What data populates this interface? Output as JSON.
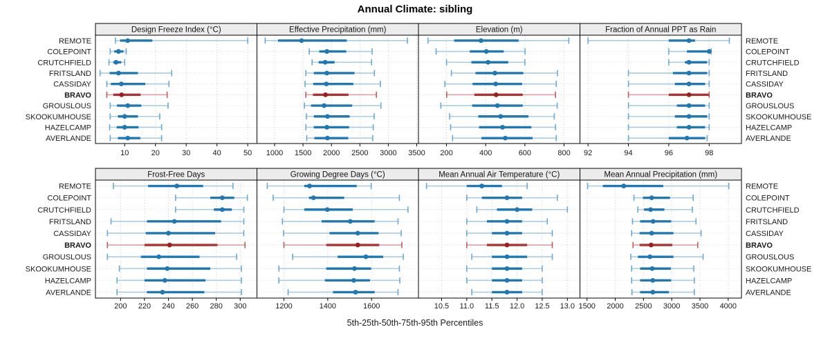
{
  "title": "Annual Climate: sibling",
  "caption": "5th-25th-50th-75th-95th Percentiles",
  "colors": {
    "blue_main": "#1f77b4",
    "blue_light": "#a8cce4",
    "blue_cap": "#69a8d3",
    "blue_guide": "#d3dde5",
    "red_main": "#b03030",
    "red_light": "#dca0a0",
    "red_cap": "#c05a5a",
    "red_dot": "#9c1f1f",
    "red_guide": "#e8cbcb",
    "header_bg": "#ececec",
    "frame": "#000000",
    "grid": "#cccccc",
    "text": "#1a1a1a"
  },
  "chart_data": {
    "type": "trellis_percentile_range",
    "percentiles": [
      5,
      25,
      50,
      75,
      95
    ],
    "stations": [
      "REMOTE",
      "COLEPOINT",
      "CRUTCHFIELD",
      "FRITSLAND",
      "CASSIDAY",
      "BRAVO",
      "GROUSLOUS",
      "SKOOKUMHOUSE",
      "HAZELCAMP",
      "AVERLANDE"
    ],
    "highlight_station": "BRAVO",
    "layout": {
      "rows": 2,
      "cols": 4,
      "legend": "none",
      "grid": "dotted"
    },
    "panels": [
      {
        "title": "Design Freeze Index (°C)",
        "row": 0,
        "col": 0,
        "xlim": [
          0.5,
          53
        ],
        "ticks": [
          10,
          20,
          30,
          40,
          50
        ],
        "tick_labels": [
          "10",
          "20",
          "30",
          "40",
          "50"
        ],
        "series": [
          {
            "station": "REMOTE",
            "p": [
              7,
              8.5,
              11,
              19,
              50
            ]
          },
          {
            "station": "COLEPOINT",
            "p": [
              5.3,
              6.6,
              8,
              9.6,
              10.5
            ]
          },
          {
            "station": "CRUTCHFIELD",
            "p": [
              4.9,
              6.3,
              7.2,
              8.9,
              10
            ]
          },
          {
            "station": "FRITSLAND",
            "p": [
              2,
              5.1,
              8,
              14.3,
              25.3
            ]
          },
          {
            "station": "CASSIDAY",
            "p": [
              4.2,
              5.5,
              8.9,
              16.7,
              24.4
            ]
          },
          {
            "station": "BRAVO",
            "p": [
              4.2,
              6.3,
              9,
              15.2,
              23.8
            ]
          },
          {
            "station": "GROUSLOUS",
            "p": [
              5.3,
              7.5,
              11,
              15.4,
              24.1
            ]
          },
          {
            "station": "SKOOKUMHOUSE",
            "p": [
              5.3,
              7.8,
              10,
              14.3,
              21.4
            ]
          },
          {
            "station": "HAZELCAMP",
            "p": [
              5.1,
              7.4,
              10,
              14.5,
              22
            ]
          },
          {
            "station": "AVERLANDE",
            "p": [
              5.3,
              7.8,
              11,
              15.1,
              22
            ]
          }
        ]
      },
      {
        "title": "Effective Precipitation (mm)",
        "row": 0,
        "col": 1,
        "xlim": [
          690,
          3530
        ],
        "ticks": [
          1000,
          1500,
          2000,
          2500,
          3000,
          3500
        ],
        "tick_labels": [
          "1000",
          "1500",
          "2000",
          "2500",
          "3000",
          "3500"
        ],
        "series": [
          {
            "station": "REMOTE",
            "p": [
              835,
              1060,
              1475,
              2270,
              3335
            ]
          },
          {
            "station": "COLEPOINT",
            "p": [
              1610,
              1785,
              1920,
              2260,
              2715
            ]
          },
          {
            "station": "CRUTCHFIELD",
            "p": [
              1660,
              1775,
              1890,
              2055,
              2705
            ]
          },
          {
            "station": "FRITSLAND",
            "p": [
              1550,
              1690,
              1920,
              2405,
              2755
            ]
          },
          {
            "station": "CASSIDAY",
            "p": [
              1535,
              1680,
              1910,
              2385,
              2860
            ]
          },
          {
            "station": "BRAVO",
            "p": [
              1550,
              1675,
              1895,
              2300,
              2790
            ]
          },
          {
            "station": "GROUSLOUS",
            "p": [
              1525,
              1640,
              1870,
              2365,
              2870
            ]
          },
          {
            "station": "SKOOKUMHOUSE",
            "p": [
              1560,
              1690,
              1930,
              2320,
              2750
            ]
          },
          {
            "station": "HAZELCAMP",
            "p": [
              1550,
              1690,
              1920,
              2310,
              2735
            ]
          },
          {
            "station": "AVERLANDE",
            "p": [
              1565,
              1700,
              1930,
              2295,
              2725
            ]
          }
        ]
      },
      {
        "title": "Elevation (m)",
        "row": 0,
        "col": 2,
        "xlim": [
          57,
          881
        ],
        "ticks": [
          200,
          400,
          600,
          800
        ],
        "tick_labels": [
          "200",
          "400",
          "600",
          "800"
        ],
        "series": [
          {
            "station": "REMOTE",
            "p": [
              106,
              239,
              376,
              568,
              824
            ]
          },
          {
            "station": "COLEPOINT",
            "p": [
              147,
              319,
              403,
              492,
              601
            ]
          },
          {
            "station": "CRUTCHFIELD",
            "p": [
              200,
              327,
              412,
              515,
              600
            ]
          },
          {
            "station": "FRITSLAND",
            "p": [
              225,
              348,
              447,
              592,
              766
            ]
          },
          {
            "station": "CASSIDAY",
            "p": [
              192,
              333,
              451,
              586,
              760
            ]
          },
          {
            "station": "BRAVO",
            "p": [
              201,
              342,
              453,
              589,
              756
            ]
          },
          {
            "station": "GROUSLOUS",
            "p": [
              171,
              331,
              460,
              589,
              765
            ]
          },
          {
            "station": "SKOOKUMHOUSE",
            "p": [
              216,
              362,
              476,
              618,
              750
            ]
          },
          {
            "station": "HAZELCAMP",
            "p": [
              221,
              366,
              486,
              633,
              756
            ]
          },
          {
            "station": "AVERLANDE",
            "p": [
              231,
              378,
              500,
              639,
              760
            ]
          }
        ]
      },
      {
        "title": "Fraction of Annual PPT as Rain",
        "row": 0,
        "col": 3,
        "xlim": [
          91.6,
          99.6
        ],
        "ticks": [
          92,
          94,
          96,
          98
        ],
        "tick_labels": [
          "92",
          "94",
          "96",
          "98"
        ],
        "series": [
          {
            "station": "REMOTE",
            "p": [
              92,
              96,
              97,
              97.3,
              99
            ]
          },
          {
            "station": "COLEPOINT",
            "p": [
              96,
              96.9,
              98,
              98,
              98.1
            ]
          },
          {
            "station": "CRUTCHFIELD",
            "p": [
              96,
              96.8,
              97,
              97.9,
              98
            ]
          },
          {
            "station": "FRITSLAND",
            "p": [
              94,
              96.2,
              97,
              97.9,
              98
            ]
          },
          {
            "station": "CASSIDAY",
            "p": [
              94,
              96.3,
              97,
              97.8,
              98
            ]
          },
          {
            "station": "BRAVO",
            "p": [
              94,
              96,
              97,
              98,
              98
            ]
          },
          {
            "station": "GROUSLOUS",
            "p": [
              94,
              96.4,
              97,
              97.8,
              98
            ]
          },
          {
            "station": "SKOOKUMHOUSE",
            "p": [
              94,
              96.3,
              97,
              97.9,
              98
            ]
          },
          {
            "station": "HAZELCAMP",
            "p": [
              94,
              96.4,
              97,
              97.8,
              98
            ]
          },
          {
            "station": "AVERLANDE",
            "p": [
              94,
              96,
              96.9,
              97.8,
              97.9
            ]
          }
        ]
      },
      {
        "title": "Frost-Free Days",
        "row": 1,
        "col": 0,
        "xlim": [
          179,
          314
        ],
        "ticks": [
          200,
          220,
          240,
          260,
          280,
          300
        ],
        "tick_labels": [
          "200",
          "220",
          "240",
          "260",
          "280",
          "300"
        ],
        "series": [
          {
            "station": "REMOTE",
            "p": [
              194,
              223,
              247,
              269,
              294
            ]
          },
          {
            "station": "COLEPOINT",
            "p": [
              246,
              275,
              285,
              295,
              306
            ]
          },
          {
            "station": "CRUTCHFIELD",
            "p": [
              246,
              278,
              285,
              293,
              303
            ]
          },
          {
            "station": "FRITSLAND",
            "p": [
              192,
              222,
              245,
              284,
              303
            ]
          },
          {
            "station": "CASSIDAY",
            "p": [
              189,
              221,
              240,
              279,
              303
            ]
          },
          {
            "station": "BRAVO",
            "p": [
              189,
              220,
              241,
              281,
              304
            ]
          },
          {
            "station": "GROUSLOUS",
            "p": [
              189,
              217,
              232,
              266,
              297
            ]
          },
          {
            "station": "SKOOKUMHOUSE",
            "p": [
              199,
              222,
              239,
              275,
              301
            ]
          },
          {
            "station": "HAZELCAMP",
            "p": [
              197,
              220,
              237,
              271,
              301
            ]
          },
          {
            "station": "AVERLANDE",
            "p": [
              197,
              222,
              235,
              270,
              301
            ]
          }
        ]
      },
      {
        "title": "Growing Degree Days (°C)",
        "row": 1,
        "col": 1,
        "xlim": [
          1077,
          1814
        ],
        "ticks": [
          1200,
          1400,
          1600
        ],
        "tick_labels": [
          "1200",
          "1400",
          "1600"
        ],
        "series": [
          {
            "station": "REMOTE",
            "p": [
              1124,
              1293,
              1317,
              1532,
              1598
            ]
          },
          {
            "station": "COLEPOINT",
            "p": [
              1151,
              1314,
              1335,
              1475,
              1727
            ]
          },
          {
            "station": "CRUTCHFIELD",
            "p": [
              1200,
              1293,
              1398,
              1514,
              1766
            ]
          },
          {
            "station": "FRITSLAND",
            "p": [
              1193,
              1372,
              1503,
              1614,
              1721
            ]
          },
          {
            "station": "CASSIDAY",
            "p": [
              1198,
              1408,
              1537,
              1632,
              1735
            ]
          },
          {
            "station": "BRAVO",
            "p": [
              1200,
              1393,
              1537,
              1635,
              1738
            ]
          },
          {
            "station": "GROUSLOUS",
            "p": [
              1240,
              1445,
              1574,
              1653,
              1745
            ]
          },
          {
            "station": "SKOOKUMHOUSE",
            "p": [
              1177,
              1393,
              1522,
              1598,
              1727
            ]
          },
          {
            "station": "HAZELCAMP",
            "p": [
              1177,
              1387,
              1519,
              1593,
              1729
            ]
          },
          {
            "station": "AVERLANDE",
            "p": [
              1219,
              1424,
              1527,
              1614,
              1721
            ]
          }
        ]
      },
      {
        "title": "Mean Annual Air Temperature (°C)",
        "row": 1,
        "col": 2,
        "xlim": [
          10.04,
          13.25
        ],
        "ticks": [
          10.5,
          11.0,
          11.5,
          12.0,
          12.5,
          13.0
        ],
        "tick_labels": [
          "10.5",
          "11.0",
          "11.5",
          "12.0",
          "12.5",
          "13.0"
        ],
        "series": [
          {
            "station": "REMOTE",
            "p": [
              10.2,
              11.0,
              11.3,
              11.7,
              12.2
            ]
          },
          {
            "station": "COLEPOINT",
            "p": [
              11.0,
              11.3,
              11.8,
              12.1,
              12.8
            ]
          },
          {
            "station": "CRUTCHFIELD",
            "p": [
              11.2,
              11.6,
              12.0,
              12.3,
              13.0
            ]
          },
          {
            "station": "FRITSLAND",
            "p": [
              11.0,
              11.4,
              11.8,
              12.1,
              12.6
            ]
          },
          {
            "station": "CASSIDAY",
            "p": [
              11.0,
              11.5,
              11.8,
              12.1,
              12.7
            ]
          },
          {
            "station": "BRAVO",
            "p": [
              11.0,
              11.4,
              11.8,
              12.2,
              12.7
            ]
          },
          {
            "station": "GROUSLOUS",
            "p": [
              11.1,
              11.5,
              11.8,
              12.2,
              12.7
            ]
          },
          {
            "station": "SKOOKUMHOUSE",
            "p": [
              11.0,
              11.5,
              11.8,
              12.1,
              12.5
            ]
          },
          {
            "station": "HAZELCAMP",
            "p": [
              11.0,
              11.5,
              11.8,
              12.1,
              12.5
            ]
          },
          {
            "station": "AVERLANDE",
            "p": [
              11.1,
              11.5,
              11.8,
              12.1,
              12.5
            ]
          }
        ]
      },
      {
        "title": "Mean Annual Precipitation (mm)",
        "row": 1,
        "col": 3,
        "xlim": [
          1375,
          4235
        ],
        "ticks": [
          1500,
          2000,
          2500,
          3000,
          3500,
          4000
        ],
        "tick_labels": [
          "1500",
          "2000",
          "2500",
          "3000",
          "3500",
          "4000"
        ],
        "series": [
          {
            "station": "REMOTE",
            "p": [
              1510,
              1780,
              2150,
              2850,
              4010
            ]
          },
          {
            "station": "COLEPOINT",
            "p": [
              2330,
              2490,
              2645,
              2970,
              3380
            ]
          },
          {
            "station": "CRUTCHFIELD",
            "p": [
              2400,
              2510,
              2625,
              2870,
              3365
            ]
          },
          {
            "station": "FRITSLAND",
            "p": [
              2305,
              2440,
              2670,
              2990,
              3430
            ]
          },
          {
            "station": "CASSIDAY",
            "p": [
              2290,
              2430,
              2645,
              3030,
              3520
            ]
          },
          {
            "station": "BRAVO",
            "p": [
              2315,
              2430,
              2635,
              3010,
              3460
            ]
          },
          {
            "station": "GROUSLOUS",
            "p": [
              2275,
              2400,
              2615,
              3030,
              3555
            ]
          },
          {
            "station": "SKOOKUMHOUSE",
            "p": [
              2290,
              2440,
              2655,
              2985,
              3390
            ]
          },
          {
            "station": "HAZELCAMP",
            "p": [
              2290,
              2440,
              2665,
              2990,
              3400
            ]
          },
          {
            "station": "AVERLANDE",
            "p": [
              2295,
              2440,
              2665,
              2950,
              3400
            ]
          }
        ]
      }
    ]
  }
}
